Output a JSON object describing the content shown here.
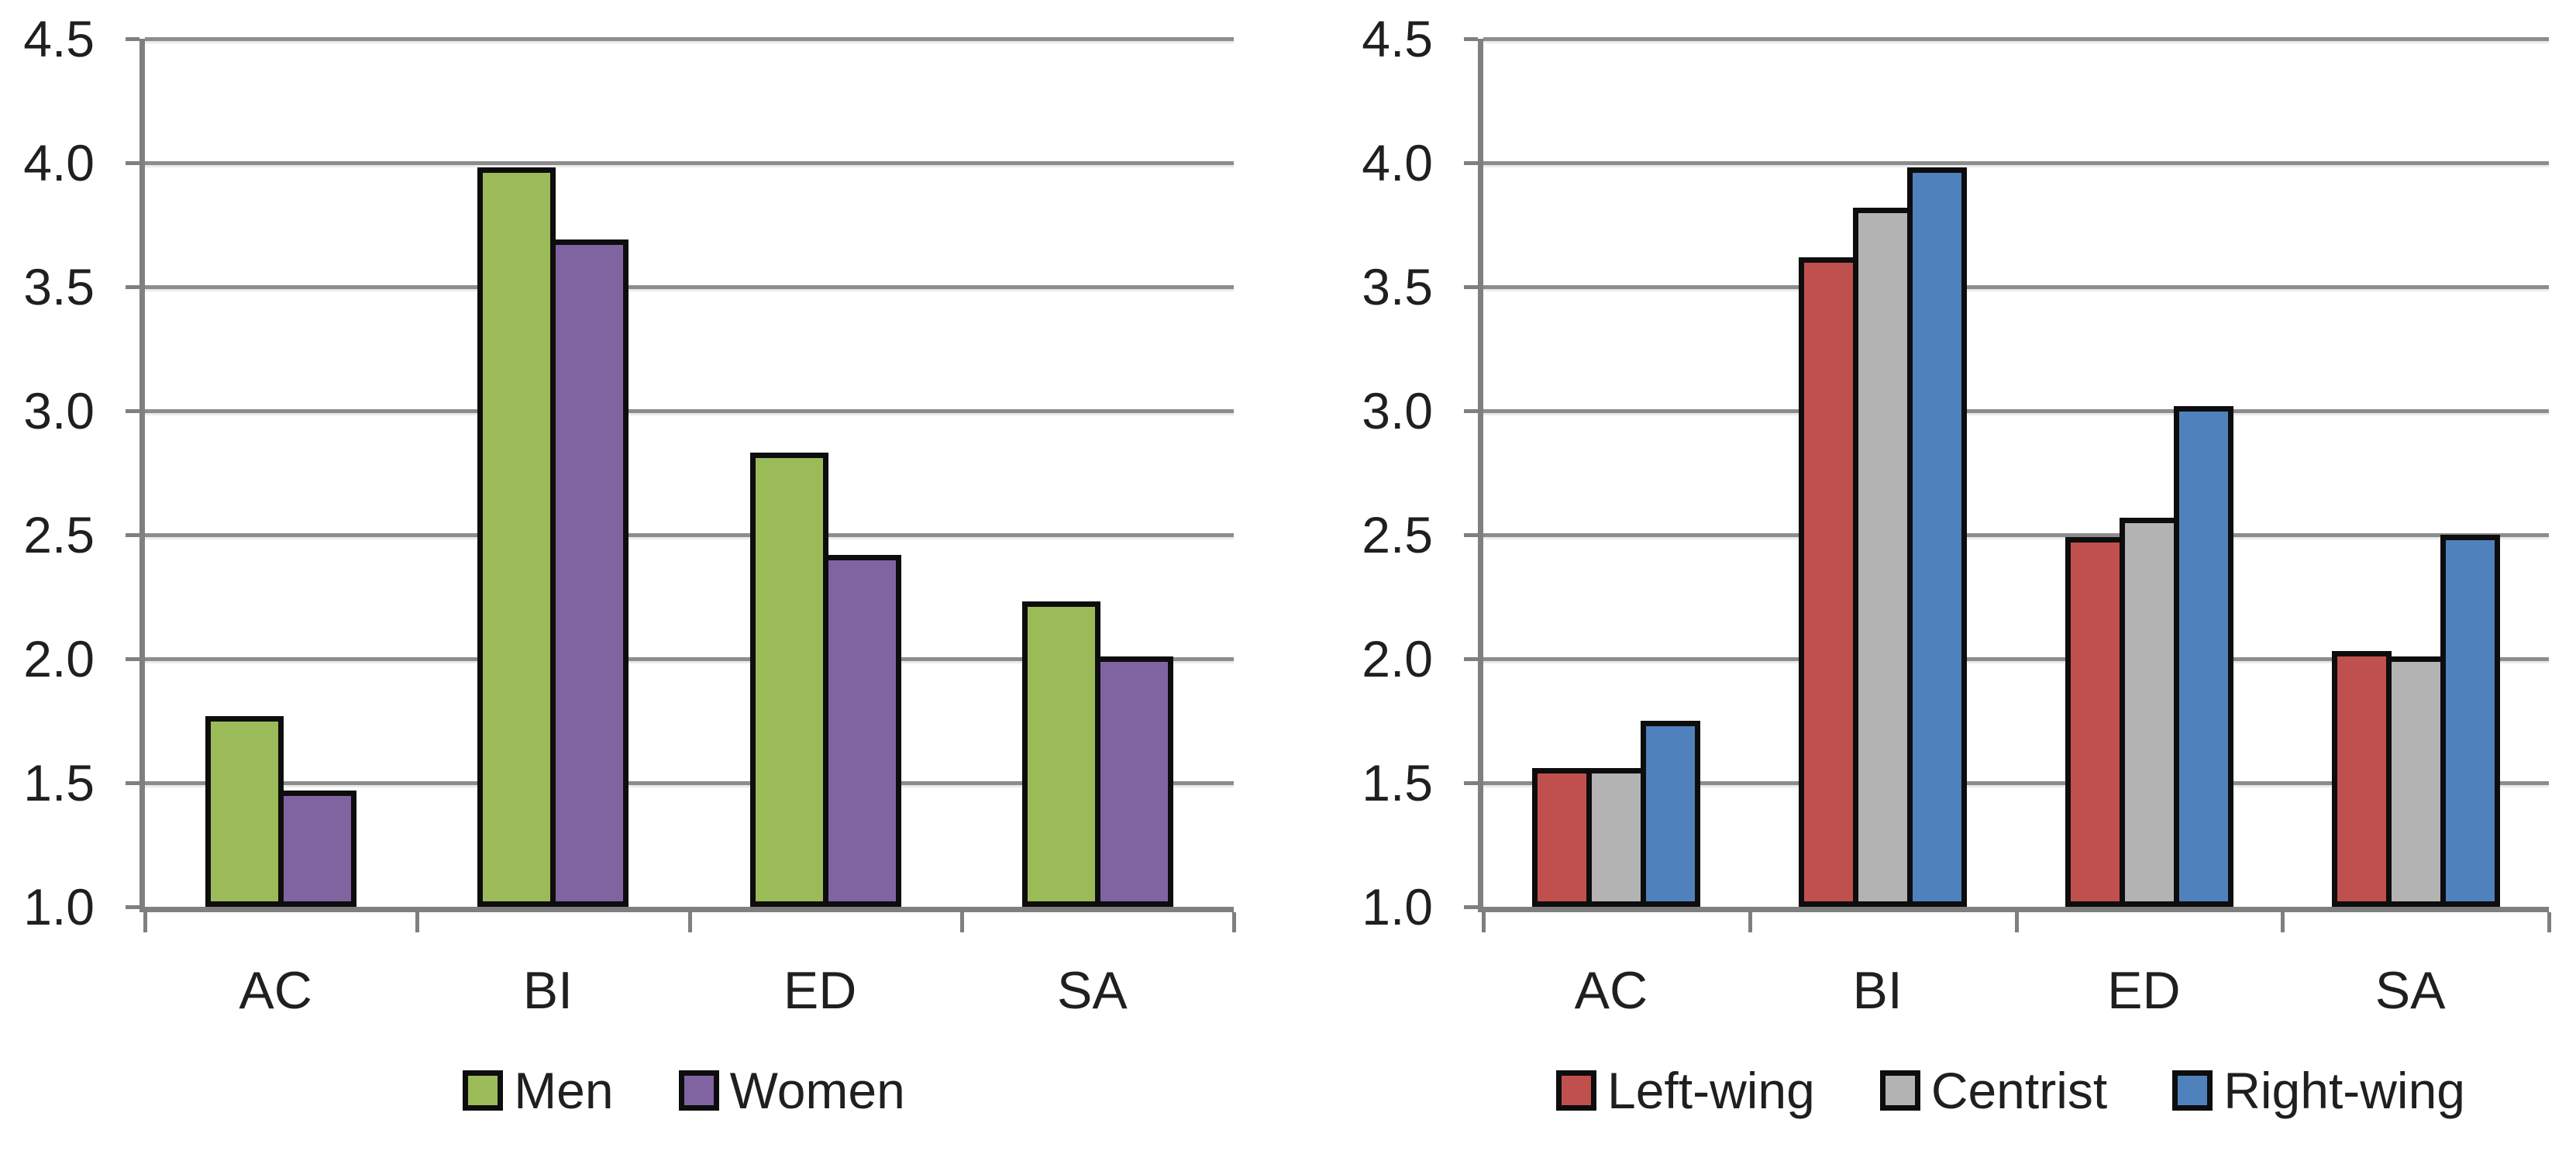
{
  "figure": {
    "background": "#FFFFFF",
    "text_color": "#1F1F1F",
    "gridline_color": "#8C8C8C",
    "axis_color": "#7F7F7F",
    "bar_border_color": "#0D0D0D"
  },
  "chart_data": [
    {
      "type": "bar",
      "name": "men-women-chart",
      "title": "",
      "categories": [
        "AC",
        "BI",
        "ED",
        "SA"
      ],
      "series": [
        {
          "name": "Men",
          "color": "#9BBB59",
          "values": [
            1.77,
            3.98,
            2.83,
            2.23
          ]
        },
        {
          "name": "Women",
          "color": "#8064A2",
          "values": [
            1.47,
            3.69,
            2.42,
            2.01
          ]
        }
      ],
      "ylim": [
        1.0,
        4.5
      ],
      "ytick_step": 0.5,
      "ytick_labels": [
        "4.5",
        "4.0",
        "3.5",
        "3.0",
        "2.5",
        "2.0",
        "1.5",
        "1.0"
      ],
      "grid": true,
      "legend_position": "bottom"
    },
    {
      "type": "bar",
      "name": "political-orientation-chart",
      "title": "",
      "categories": [
        "AC",
        "BI",
        "ED",
        "SA"
      ],
      "series": [
        {
          "name": "Left-wing",
          "color": "#C0504D",
          "values": [
            1.56,
            3.62,
            2.49,
            2.03
          ]
        },
        {
          "name": "Centrist",
          "color": "#B3B3B3",
          "values": [
            1.56,
            3.82,
            2.57,
            2.01
          ]
        },
        {
          "name": "Right-wing",
          "color": "#4F81BD",
          "values": [
            1.75,
            3.98,
            3.02,
            2.5
          ]
        }
      ],
      "ylim": [
        1.0,
        4.5
      ],
      "ytick_step": 0.5,
      "ytick_labels": [
        "4.5",
        "4.0",
        "3.5",
        "3.0",
        "2.5",
        "2.0",
        "1.5",
        "1.0"
      ],
      "grid": true,
      "legend_position": "bottom"
    }
  ]
}
